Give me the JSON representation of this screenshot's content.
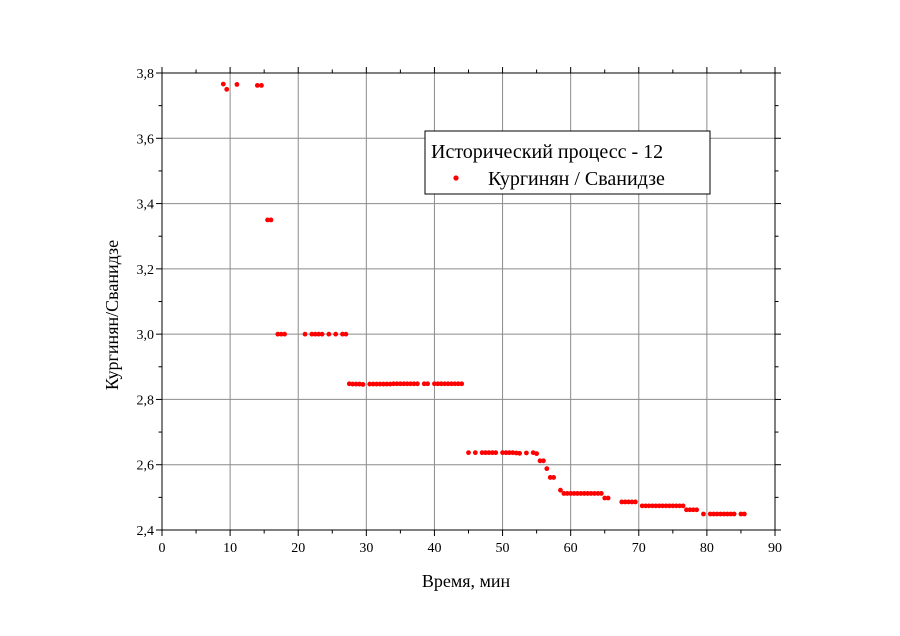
{
  "chart_data": {
    "type": "scatter",
    "title": "",
    "xlabel": "Время, мин",
    "ylabel": "Кургинян/Сванидзе",
    "xlim": [
      0,
      90
    ],
    "ylim": [
      2.4,
      3.8
    ],
    "xticks": [
      0,
      10,
      20,
      30,
      40,
      50,
      60,
      70,
      80,
      90
    ],
    "xtick_labels": [
      "0",
      "10",
      "20",
      "30",
      "40",
      "50",
      "60",
      "70",
      "80",
      "90"
    ],
    "yticks": [
      2.4,
      2.6,
      2.8,
      3.0,
      3.2,
      3.4,
      3.6,
      3.8
    ],
    "ytick_labels": [
      "2,4",
      "2,6",
      "2,8",
      "3,0",
      "3,2",
      "3,4",
      "3,6",
      "3,8"
    ],
    "grid": true,
    "legend": {
      "title": "Исторический процесс - 12",
      "placement": "top-right",
      "entries": [
        "Кургинян / Сванидзе"
      ]
    },
    "colors": {
      "series": "#ff0000",
      "grid": "#8c8c8c",
      "axis": "#000000"
    },
    "series": [
      {
        "name": "Кургинян / Сванидзе",
        "points": [
          [
            9.0,
            3.766
          ],
          [
            9.5,
            3.75
          ],
          [
            11.0,
            3.765
          ],
          [
            14.0,
            3.762
          ],
          [
            14.6,
            3.762
          ],
          [
            15.5,
            3.35
          ],
          [
            16.0,
            3.35
          ],
          [
            17.0,
            3.0
          ],
          [
            17.5,
            3.0
          ],
          [
            18.0,
            3.0
          ],
          [
            21.0,
            3.0
          ],
          [
            22.0,
            3.0
          ],
          [
            22.5,
            3.0
          ],
          [
            23.0,
            3.0
          ],
          [
            23.5,
            3.0
          ],
          [
            24.5,
            3.0
          ],
          [
            25.5,
            3.0
          ],
          [
            26.5,
            3.0
          ],
          [
            27.0,
            3.0
          ],
          [
            27.5,
            2.848
          ],
          [
            28.0,
            2.847
          ],
          [
            28.5,
            2.847
          ],
          [
            29.0,
            2.847
          ],
          [
            29.5,
            2.846
          ],
          [
            30.5,
            2.847
          ],
          [
            31.0,
            2.847
          ],
          [
            31.5,
            2.847
          ],
          [
            32.0,
            2.847
          ],
          [
            32.5,
            2.847
          ],
          [
            33.0,
            2.847
          ],
          [
            33.5,
            2.847
          ],
          [
            34.0,
            2.848
          ],
          [
            34.5,
            2.848
          ],
          [
            35.0,
            2.848
          ],
          [
            35.5,
            2.848
          ],
          [
            36.0,
            2.848
          ],
          [
            36.5,
            2.848
          ],
          [
            37.0,
            2.848
          ],
          [
            37.5,
            2.848
          ],
          [
            38.5,
            2.848
          ],
          [
            39.0,
            2.848
          ],
          [
            40.0,
            2.848
          ],
          [
            40.5,
            2.848
          ],
          [
            41.0,
            2.848
          ],
          [
            41.5,
            2.848
          ],
          [
            42.0,
            2.848
          ],
          [
            42.5,
            2.848
          ],
          [
            43.0,
            2.848
          ],
          [
            43.5,
            2.848
          ],
          [
            44.0,
            2.848
          ],
          [
            45.0,
            2.637
          ],
          [
            46.0,
            2.637
          ],
          [
            47.0,
            2.637
          ],
          [
            47.5,
            2.637
          ],
          [
            48.0,
            2.637
          ],
          [
            48.5,
            2.637
          ],
          [
            49.0,
            2.637
          ],
          [
            50.0,
            2.637
          ],
          [
            50.5,
            2.637
          ],
          [
            51.0,
            2.637
          ],
          [
            51.5,
            2.637
          ],
          [
            52.0,
            2.636
          ],
          [
            52.5,
            2.635
          ],
          [
            53.5,
            2.636
          ],
          [
            54.5,
            2.637
          ],
          [
            55.0,
            2.634
          ],
          [
            55.5,
            2.612
          ],
          [
            56.0,
            2.612
          ],
          [
            56.5,
            2.588
          ],
          [
            57.0,
            2.561
          ],
          [
            57.5,
            2.561
          ],
          [
            58.5,
            2.522
          ],
          [
            59.0,
            2.512
          ],
          [
            59.5,
            2.512
          ],
          [
            60.0,
            2.512
          ],
          [
            60.5,
            2.512
          ],
          [
            61.0,
            2.512
          ],
          [
            61.5,
            2.512
          ],
          [
            62.0,
            2.512
          ],
          [
            62.5,
            2.512
          ],
          [
            63.0,
            2.512
          ],
          [
            63.5,
            2.512
          ],
          [
            64.0,
            2.512
          ],
          [
            64.5,
            2.512
          ],
          [
            65.0,
            2.498
          ],
          [
            65.5,
            2.498
          ],
          [
            67.5,
            2.486
          ],
          [
            68.0,
            2.486
          ],
          [
            68.5,
            2.486
          ],
          [
            69.0,
            2.486
          ],
          [
            69.5,
            2.486
          ],
          [
            70.5,
            2.474
          ],
          [
            71.0,
            2.474
          ],
          [
            71.5,
            2.474
          ],
          [
            72.0,
            2.474
          ],
          [
            72.5,
            2.474
          ],
          [
            73.0,
            2.474
          ],
          [
            73.5,
            2.474
          ],
          [
            74.0,
            2.474
          ],
          [
            74.5,
            2.474
          ],
          [
            75.0,
            2.474
          ],
          [
            75.5,
            2.474
          ],
          [
            76.0,
            2.474
          ],
          [
            76.5,
            2.474
          ],
          [
            77.0,
            2.462
          ],
          [
            77.5,
            2.462
          ],
          [
            78.0,
            2.462
          ],
          [
            78.5,
            2.462
          ],
          [
            79.5,
            2.449
          ],
          [
            80.5,
            2.449
          ],
          [
            81.0,
            2.449
          ],
          [
            81.5,
            2.449
          ],
          [
            82.0,
            2.449
          ],
          [
            82.5,
            2.449
          ],
          [
            83.0,
            2.449
          ],
          [
            83.5,
            2.449
          ],
          [
            84.0,
            2.449
          ],
          [
            85.0,
            2.449
          ],
          [
            85.5,
            2.449
          ]
        ]
      }
    ]
  }
}
